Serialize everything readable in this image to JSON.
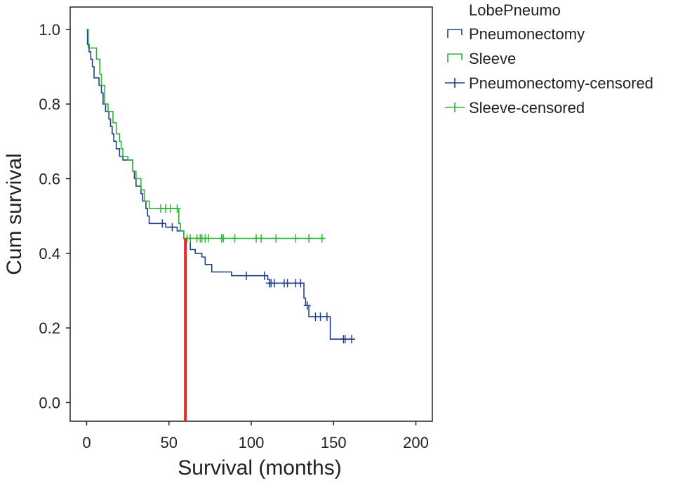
{
  "chart_data": {
    "type": "line",
    "subtype": "kaplan-meier",
    "title": "",
    "xlabel": "Survival (months)",
    "ylabel": "Cum survival",
    "xlim": [
      -10,
      210
    ],
    "ylim": [
      -0.05,
      1.06
    ],
    "x_ticks": [
      0,
      50,
      100,
      150,
      200
    ],
    "y_ticks": [
      0.0,
      0.2,
      0.4,
      0.6,
      0.8,
      1.0
    ],
    "x_tick_labels": [
      "0",
      "50",
      "100",
      "150",
      "200"
    ],
    "y_tick_labels": [
      "0.0",
      "0.2",
      "0.4",
      "0.6",
      "0.8",
      "1.0"
    ],
    "grid": false,
    "legend_placement": "top-right-outside",
    "legend_title": "LobePneumo",
    "legend_entries": [
      "Pneumonectomy",
      "Sleeve",
      "Pneumonectomy-censored",
      "Sleeve-censored"
    ],
    "series": [
      {
        "name": "Pneumonectomy",
        "color": "#1f3f94",
        "steps": [
          [
            0,
            1.0
          ],
          [
            0.5,
            0.96
          ],
          [
            1.5,
            0.94
          ],
          [
            2.5,
            0.92
          ],
          [
            3.5,
            0.9
          ],
          [
            4.5,
            0.87
          ],
          [
            7.5,
            0.85
          ],
          [
            9,
            0.83
          ],
          [
            10,
            0.8
          ],
          [
            11.5,
            0.78
          ],
          [
            13.5,
            0.76
          ],
          [
            14.5,
            0.74
          ],
          [
            15.5,
            0.72
          ],
          [
            16.5,
            0.7
          ],
          [
            18,
            0.68
          ],
          [
            20,
            0.66
          ],
          [
            22,
            0.65
          ],
          [
            28,
            0.62
          ],
          [
            29,
            0.6
          ],
          [
            30,
            0.58
          ],
          [
            33,
            0.56
          ],
          [
            34,
            0.54
          ],
          [
            36,
            0.52
          ],
          [
            37,
            0.5
          ],
          [
            38,
            0.48
          ],
          [
            48,
            0.47
          ],
          [
            55,
            0.46
          ],
          [
            59,
            0.44
          ],
          [
            63,
            0.41
          ],
          [
            66,
            0.4
          ],
          [
            70,
            0.39
          ],
          [
            72,
            0.37
          ],
          [
            76,
            0.35
          ],
          [
            88,
            0.34
          ],
          [
            110,
            0.33
          ],
          [
            111,
            0.32
          ],
          [
            132,
            0.28
          ],
          [
            133,
            0.26
          ],
          [
            135,
            0.23
          ],
          [
            148,
            0.17
          ],
          [
            162,
            0.17
          ]
        ],
        "censored": [
          46,
          52,
          97,
          108,
          111,
          112,
          114,
          120,
          122,
          127,
          130,
          134,
          139,
          142,
          146,
          156,
          157,
          161
        ]
      },
      {
        "name": "Sleeve",
        "color": "#2bb533",
        "steps": [
          [
            0,
            1.0
          ],
          [
            1,
            0.95
          ],
          [
            6,
            0.92
          ],
          [
            8,
            0.88
          ],
          [
            9,
            0.85
          ],
          [
            11,
            0.8
          ],
          [
            13,
            0.78
          ],
          [
            16,
            0.75
          ],
          [
            18,
            0.72
          ],
          [
            20,
            0.7
          ],
          [
            21,
            0.68
          ],
          [
            22,
            0.66
          ],
          [
            25,
            0.65
          ],
          [
            28,
            0.62
          ],
          [
            30,
            0.6
          ],
          [
            33,
            0.57
          ],
          [
            35,
            0.54
          ],
          [
            38,
            0.52
          ],
          [
            43,
            0.52
          ],
          [
            56,
            0.48
          ],
          [
            57,
            0.46
          ],
          [
            59,
            0.44
          ],
          [
            144,
            0.44
          ]
        ],
        "censored": [
          45,
          48,
          51,
          55,
          61,
          63,
          67,
          69,
          70,
          72,
          74,
          82,
          83,
          90,
          103,
          106,
          115,
          127,
          135,
          143
        ]
      }
    ],
    "annotations": [
      {
        "type": "vertical-line",
        "x": 60,
        "y_from": -0.05,
        "y_to": 0.44,
        "color": "#e8251f"
      }
    ]
  }
}
